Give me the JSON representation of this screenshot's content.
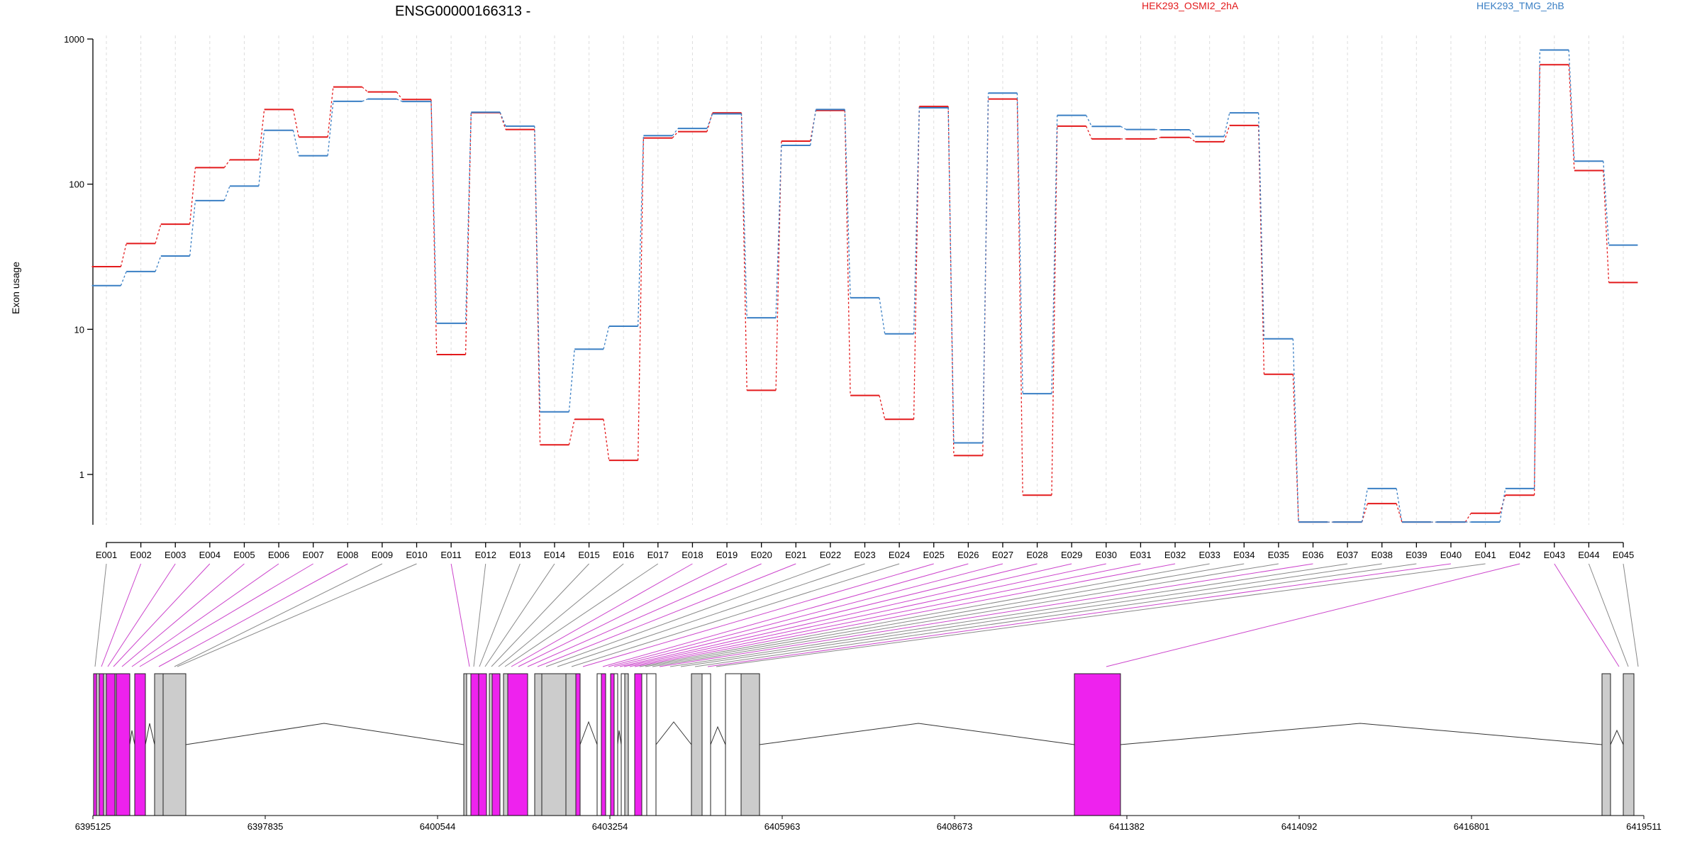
{
  "chart_data": {
    "type": "line",
    "title": "ENSG00000166313 -",
    "ylabel": "Exon usage",
    "xlabel": "",
    "yscale": "log",
    "ylim": [
      0.45,
      1000
    ],
    "yticks": [
      1,
      10,
      100,
      1000
    ],
    "grid": "vertical dotted lines at each exon",
    "legend_position": "top-right",
    "categories": [
      "E001",
      "E002",
      "E003",
      "E004",
      "E005",
      "E006",
      "E007",
      "E008",
      "E009",
      "E010",
      "E011",
      "E012",
      "E013",
      "E014",
      "E015",
      "E016",
      "E017",
      "E018",
      "E019",
      "E020",
      "E021",
      "E022",
      "E023",
      "E024",
      "E025",
      "E026",
      "E027",
      "E028",
      "E029",
      "E030",
      "E031",
      "E032",
      "E033",
      "E034",
      "E035",
      "E036",
      "E037",
      "E038",
      "E039",
      "E040",
      "E041",
      "E042",
      "E043",
      "E044",
      "E045"
    ],
    "series": [
      {
        "name": "HEK293_OSMI2_2hA",
        "color": "#e31a1c",
        "values": [
          27,
          39,
          53,
          130,
          147,
          327,
          211,
          467,
          432,
          383,
          6.7,
          311,
          238,
          1.6,
          2.4,
          1.25,
          208,
          230,
          310,
          3.8,
          198,
          322,
          3.5,
          2.4,
          343,
          1.35,
          386,
          0.72,
          251,
          205,
          205,
          210,
          196,
          254,
          4.9,
          0.47,
          0.47,
          0.63,
          0.47,
          0.47,
          0.54,
          0.72,
          665,
          124,
          21
        ]
      },
      {
        "name": "HEK293_TMG_2hB",
        "color": "#3a7fc4",
        "values": [
          20,
          25,
          32,
          77,
          97,
          235,
          157,
          372,
          386,
          371,
          11,
          313,
          251,
          2.7,
          7.3,
          10.5,
          216,
          242,
          305,
          12,
          185,
          327,
          16.5,
          9.3,
          336,
          1.65,
          424,
          3.6,
          298,
          250,
          238,
          237,
          213,
          310,
          8.6,
          0.47,
          0.47,
          0.8,
          0.47,
          0.47,
          0.47,
          0.8,
          840,
          144,
          38
        ]
      }
    ]
  },
  "gene_model": {
    "coordinate_labels": [
      "6395125",
      "6397835",
      "6400544",
      "6403254",
      "6405963",
      "6408673",
      "6411382",
      "6414092",
      "6416801",
      "6419511"
    ],
    "exon_fill_colors": {
      "default": "#cccccc",
      "highlighted": "#ee22ee",
      "unexpressed": "#ffffff"
    },
    "connector_colors": {
      "default": "#888888",
      "highlighted": "#cc44cc"
    }
  }
}
